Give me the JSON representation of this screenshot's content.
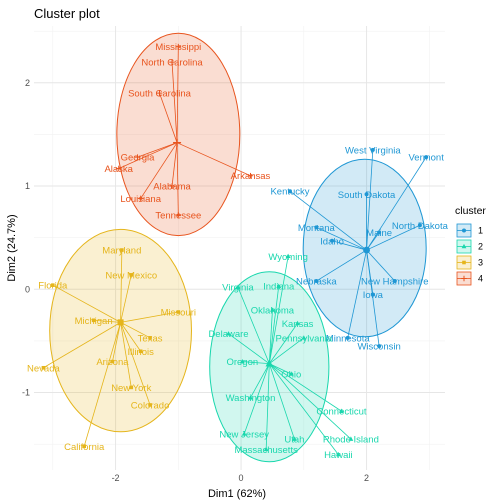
{
  "chart_data": {
    "type": "scatter",
    "title": "Cluster plot",
    "xlabel": "Dim1 (62%)",
    "ylabel": "Dim2 (24.7%)",
    "xlim": [
      -3.3,
      3.25
    ],
    "ylim": [
      -1.75,
      2.55
    ],
    "xticks": [
      -2,
      0,
      2
    ],
    "yticks": [
      -1,
      0,
      1,
      2
    ],
    "grid": true,
    "legend": {
      "title": "cluster",
      "position": "right",
      "entries": [
        "1",
        "2",
        "3",
        "4"
      ]
    },
    "clusters": [
      {
        "name": "1",
        "color": "#1f97d4",
        "marker": "circle",
        "center": [
          2.0,
          0.38
        ],
        "ellipse": {
          "cx": 1.97,
          "cy": 0.4,
          "rx": 0.98,
          "ry": 0.86
        },
        "points": [
          {
            "label": "West Virginia",
            "x": 2.1,
            "y": 1.35
          },
          {
            "label": "Vermont",
            "x": 2.95,
            "y": 1.28
          },
          {
            "label": "Kentucky",
            "x": 0.78,
            "y": 0.95
          },
          {
            "label": "South Dakota",
            "x": 2.0,
            "y": 0.92
          },
          {
            "label": "Montana",
            "x": 1.2,
            "y": 0.6
          },
          {
            "label": "North Dakota",
            "x": 2.85,
            "y": 0.62
          },
          {
            "label": "Idaho",
            "x": 1.45,
            "y": 0.47
          },
          {
            "label": "Maine",
            "x": 2.2,
            "y": 0.55
          },
          {
            "label": "New Hampshire",
            "x": 2.45,
            "y": 0.08
          },
          {
            "label": "Nebraska",
            "x": 1.2,
            "y": 0.08
          },
          {
            "label": "Iowa",
            "x": 2.1,
            "y": -0.05
          },
          {
            "label": "Wisconsin",
            "x": 2.2,
            "y": -0.55
          },
          {
            "label": "Minnesota",
            "x": 1.7,
            "y": -0.47
          }
        ]
      },
      {
        "name": "2",
        "color": "#19d7ad",
        "marker": "triangle",
        "center": [
          0.45,
          -0.72
        ],
        "ellipse": {
          "cx": 0.45,
          "cy": -0.75,
          "rx": 0.95,
          "ry": 0.92
        },
        "points": [
          {
            "label": "Wyoming",
            "x": 0.75,
            "y": 0.32
          },
          {
            "label": "Virginia",
            "x": -0.05,
            "y": 0.02
          },
          {
            "label": "Indiana",
            "x": 0.6,
            "y": 0.03
          },
          {
            "label": "Oklahoma",
            "x": 0.5,
            "y": -0.2
          },
          {
            "label": "Kansas",
            "x": 0.9,
            "y": -0.33
          },
          {
            "label": "Delaware",
            "x": -0.2,
            "y": -0.43
          },
          {
            "label": "Pennsylvania",
            "x": 1.0,
            "y": -0.47
          },
          {
            "label": "Oregon",
            "x": 0.02,
            "y": -0.7
          },
          {
            "label": "Ohio",
            "x": 0.8,
            "y": -0.82
          },
          {
            "label": "Washington",
            "x": 0.15,
            "y": -1.05
          },
          {
            "label": "Connecticut",
            "x": 1.6,
            "y": -1.18
          },
          {
            "label": "New Jersey",
            "x": 0.05,
            "y": -1.4
          },
          {
            "label": "Utah",
            "x": 0.85,
            "y": -1.45
          },
          {
            "label": "Rhode Island",
            "x": 1.75,
            "y": -1.45
          },
          {
            "label": "Massachusetts",
            "x": 0.4,
            "y": -1.55
          },
          {
            "label": "Hawaii",
            "x": 1.55,
            "y": -1.6
          }
        ]
      },
      {
        "name": "3",
        "color": "#e5b51b",
        "marker": "square",
        "center": [
          -1.92,
          -0.32
        ],
        "ellipse": {
          "cx": -1.92,
          "cy": -0.4,
          "rx": 1.13,
          "ry": 0.98
        },
        "points": [
          {
            "label": "Maryland",
            "x": -1.9,
            "y": 0.38
          },
          {
            "label": "New Mexico",
            "x": -1.75,
            "y": 0.14
          },
          {
            "label": "Florida",
            "x": -3.0,
            "y": 0.04
          },
          {
            "label": "Missouri",
            "x": -1.0,
            "y": -0.22
          },
          {
            "label": "Michigan",
            "x": -2.35,
            "y": -0.3
          },
          {
            "label": "Texas",
            "x": -1.45,
            "y": -0.47
          },
          {
            "label": "Illinois",
            "x": -1.6,
            "y": -0.6
          },
          {
            "label": "Nevada",
            "x": -3.15,
            "y": -0.76
          },
          {
            "label": "Arizona",
            "x": -2.05,
            "y": -0.7
          },
          {
            "label": "New York",
            "x": -1.75,
            "y": -0.95
          },
          {
            "label": "Colorado",
            "x": -1.45,
            "y": -1.12
          },
          {
            "label": "California",
            "x": -2.5,
            "y": -1.52
          }
        ]
      },
      {
        "name": "4",
        "color": "#e8541e",
        "marker": "plus",
        "center": [
          -1.02,
          1.42
        ],
        "ellipse": {
          "cx": -1.0,
          "cy": 1.5,
          "rx": 0.98,
          "ry": 0.98
        },
        "points": [
          {
            "label": "Mississippi",
            "x": -1.0,
            "y": 2.35
          },
          {
            "label": "North Carolina",
            "x": -1.1,
            "y": 2.2
          },
          {
            "label": "South Carolina",
            "x": -1.3,
            "y": 1.9
          },
          {
            "label": "Georgia",
            "x": -1.65,
            "y": 1.28
          },
          {
            "label": "Alaska",
            "x": -1.95,
            "y": 1.17
          },
          {
            "label": "Arkansas",
            "x": 0.15,
            "y": 1.1
          },
          {
            "label": "Alabama",
            "x": -1.1,
            "y": 1.0
          },
          {
            "label": "Louisiana",
            "x": -1.6,
            "y": 0.88
          },
          {
            "label": "Tennessee",
            "x": -1.0,
            "y": 0.72
          }
        ]
      }
    ]
  }
}
